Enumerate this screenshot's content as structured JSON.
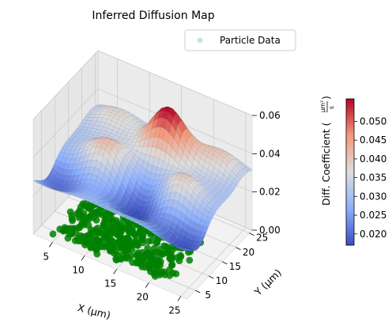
{
  "chart_data": {
    "type": "surface3d",
    "title": "Inferred Diffusion Map",
    "xlabel": "X (μm)",
    "ylabel": "Y (μm)",
    "zlabel_main": "Diff. Coefficient (",
    "zlabel_num": "μm²",
    "zlabel_den": "s",
    "zlabel_close": ")",
    "xlim": [
      2,
      26
    ],
    "ylim": [
      2,
      26
    ],
    "zlim": [
      0,
      0.06
    ],
    "xticks": [
      "5",
      "10",
      "15",
      "20",
      "25"
    ],
    "yticks": [
      "5",
      "10",
      "15",
      "20",
      "25"
    ],
    "zticks": [
      "0.00",
      "0.02",
      "0.04",
      "0.06"
    ],
    "colorbar": {
      "colormap": "coolwarm",
      "range": [
        0.017,
        0.056
      ],
      "ticks": [
        "0.020",
        "0.025",
        "0.030",
        "0.035",
        "0.040",
        "0.045",
        "0.050"
      ]
    },
    "legend": {
      "position": "top-right",
      "entries": [
        "Particle Data"
      ]
    },
    "series": [
      {
        "name": "Particle Data",
        "kind": "scatter",
        "color": "#008000",
        "z": 0
      }
    ]
  }
}
